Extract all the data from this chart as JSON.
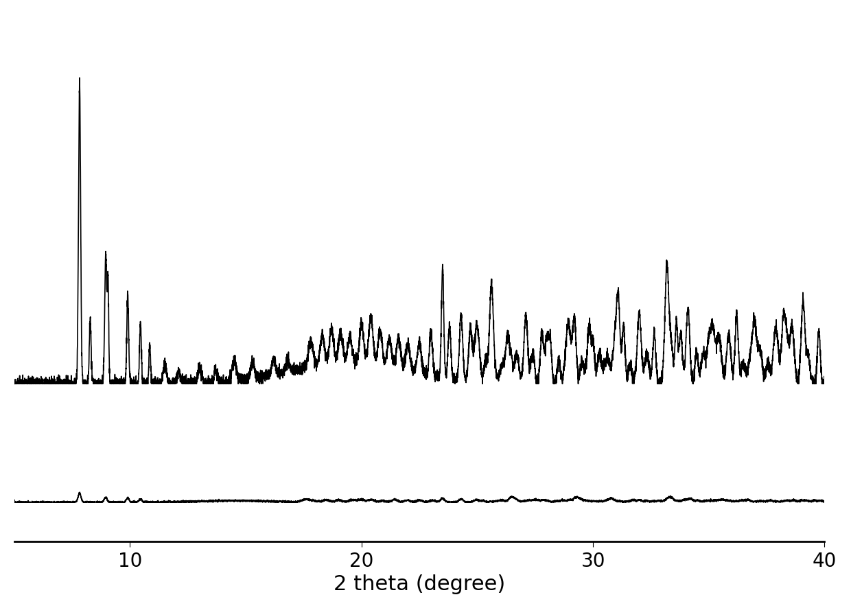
{
  "xlabel": "2 theta (degree)",
  "xlabel_fontsize": 22,
  "xlim": [
    5,
    40
  ],
  "ylim": [
    -0.02,
    1.05
  ],
  "xticks": [
    10,
    20,
    30,
    40
  ],
  "tick_fontsize": 20,
  "line_color": "#000000",
  "line_width": 1.2,
  "background_color": "#ffffff",
  "figsize": [
    12.4,
    8.87
  ],
  "dpi": 100
}
